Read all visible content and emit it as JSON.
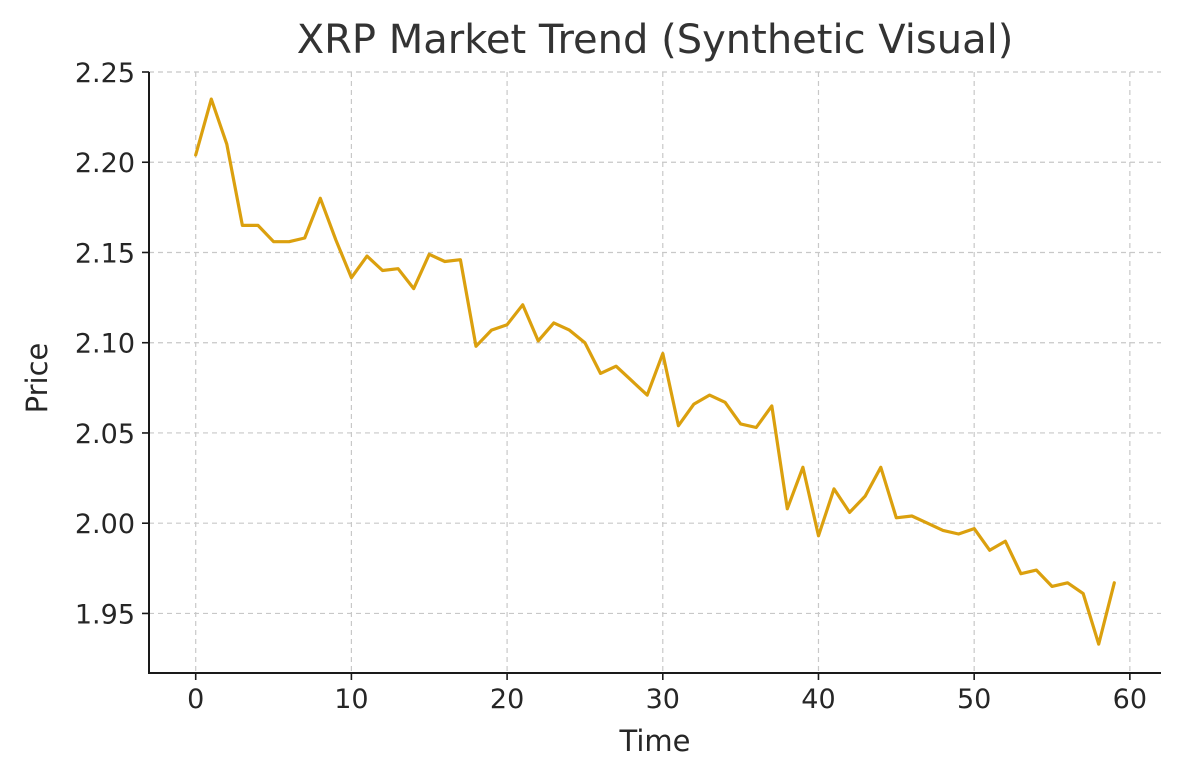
{
  "chart_data": {
    "type": "line",
    "title": "XRP Market Trend (Synthetic Visual)",
    "xlabel": "Time",
    "ylabel": "Price",
    "xlim": [
      -3,
      62
    ],
    "ylim": [
      1.917,
      2.25
    ],
    "grid": true,
    "x_ticks": [
      0,
      10,
      20,
      30,
      40,
      50,
      60
    ],
    "x_tick_labels": [
      "0",
      "10",
      "20",
      "30",
      "40",
      "50",
      "60"
    ],
    "y_ticks": [
      1.95,
      2.0,
      2.05,
      2.1,
      2.15,
      2.2,
      2.25
    ],
    "y_tick_labels": [
      "1.95",
      "2.00",
      "2.05",
      "2.10",
      "2.15",
      "2.20",
      "2.25"
    ],
    "series": [
      {
        "color": "#DBA00E",
        "x": [
          0,
          1,
          2,
          3,
          4,
          5,
          6,
          7,
          8,
          9,
          10,
          11,
          12,
          13,
          14,
          15,
          16,
          17,
          18,
          19,
          20,
          21,
          22,
          23,
          24,
          25,
          26,
          27,
          28,
          29,
          30,
          31,
          32,
          33,
          34,
          35,
          36,
          37,
          38,
          39,
          40,
          41,
          42,
          43,
          44,
          45,
          46,
          47,
          48,
          49,
          50,
          51,
          52,
          53,
          54,
          55,
          56,
          57,
          58,
          59
        ],
        "y": [
          2.204,
          2.235,
          2.21,
          2.165,
          2.165,
          2.156,
          2.156,
          2.158,
          2.18,
          2.157,
          2.136,
          2.148,
          2.14,
          2.141,
          2.13,
          2.149,
          2.145,
          2.146,
          2.098,
          2.107,
          2.11,
          2.121,
          2.101,
          2.111,
          2.107,
          2.1,
          2.083,
          2.087,
          2.079,
          2.071,
          2.094,
          2.054,
          2.066,
          2.071,
          2.067,
          2.055,
          2.053,
          2.065,
          2.008,
          2.031,
          1.993,
          2.019,
          2.006,
          2.015,
          2.031,
          2.003,
          2.004,
          2.0,
          1.996,
          1.994,
          1.997,
          1.985,
          1.99,
          1.972,
          1.974,
          1.965,
          1.967,
          1.961,
          1.933,
          1.967
        ]
      }
    ]
  }
}
